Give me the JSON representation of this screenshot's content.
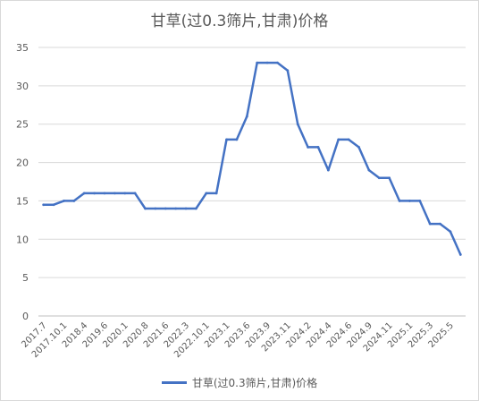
{
  "chart_data": {
    "type": "line",
    "title": "甘草(过0.3筛片,甘肃)价格",
    "xlabel": "",
    "ylabel": "",
    "ylim": [
      0,
      35
    ],
    "yticks": [
      0,
      5,
      10,
      15,
      20,
      25,
      30,
      35
    ],
    "grid": "horizontal",
    "legend_position": "bottom",
    "x_tick_labels": [
      "2017.7",
      "2017.10.1",
      "2018.4",
      "2019.6",
      "2020.1",
      "2020.8",
      "2021.6",
      "2022.3",
      "2022.10.1",
      "2023.1",
      "2023.6",
      "2023.9",
      "2023.11",
      "2024.2",
      "2024.4",
      "2024.6",
      "2024.9",
      "2024.11",
      "2025.1",
      "2025.3",
      "2025.5"
    ],
    "series": [
      {
        "name": "甘草(过0.3筛片,甘肃)价格",
        "color": "#4472c4",
        "values": [
          14.5,
          14.5,
          15,
          15,
          16,
          16,
          16,
          16,
          16,
          16,
          14,
          14,
          14,
          14,
          14,
          14,
          16,
          16,
          23,
          23,
          26,
          33,
          33,
          33,
          32,
          25,
          22,
          22,
          19,
          23,
          23,
          22,
          19,
          18,
          18,
          15,
          15,
          15,
          12,
          12,
          11,
          8
        ]
      }
    ]
  }
}
